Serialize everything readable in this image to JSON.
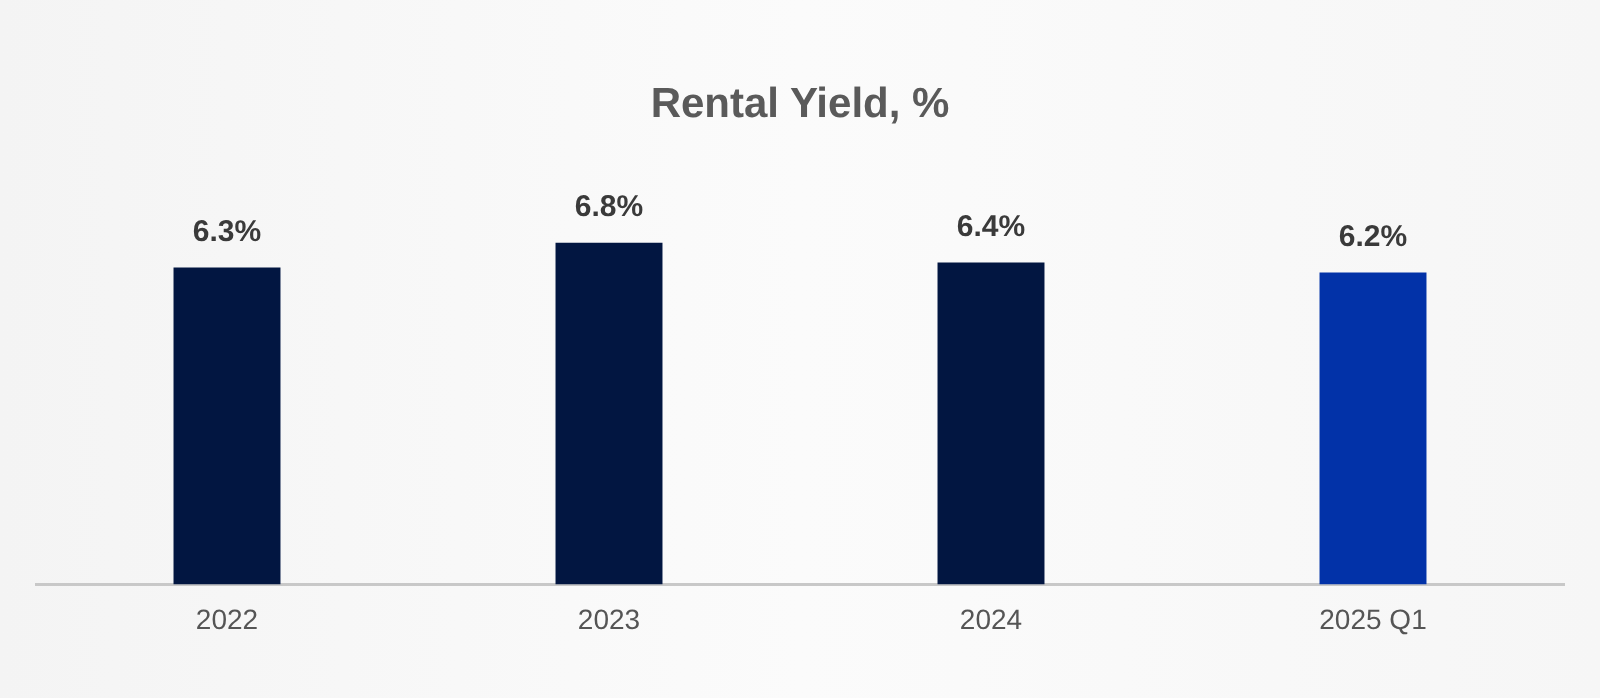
{
  "chart_data": {
    "type": "bar",
    "title": "Rental Yield, %",
    "categories": [
      "2022",
      "2023",
      "2024",
      "2025 Q1"
    ],
    "values": [
      6.3,
      6.8,
      6.4,
      6.2
    ],
    "colors": [
      "#021641",
      "#021641",
      "#021641",
      "#0232a8"
    ],
    "value_labels": [
      "6.3%",
      "6.8%",
      "6.4%",
      "6.2%"
    ],
    "grid": false,
    "legend": false
  }
}
